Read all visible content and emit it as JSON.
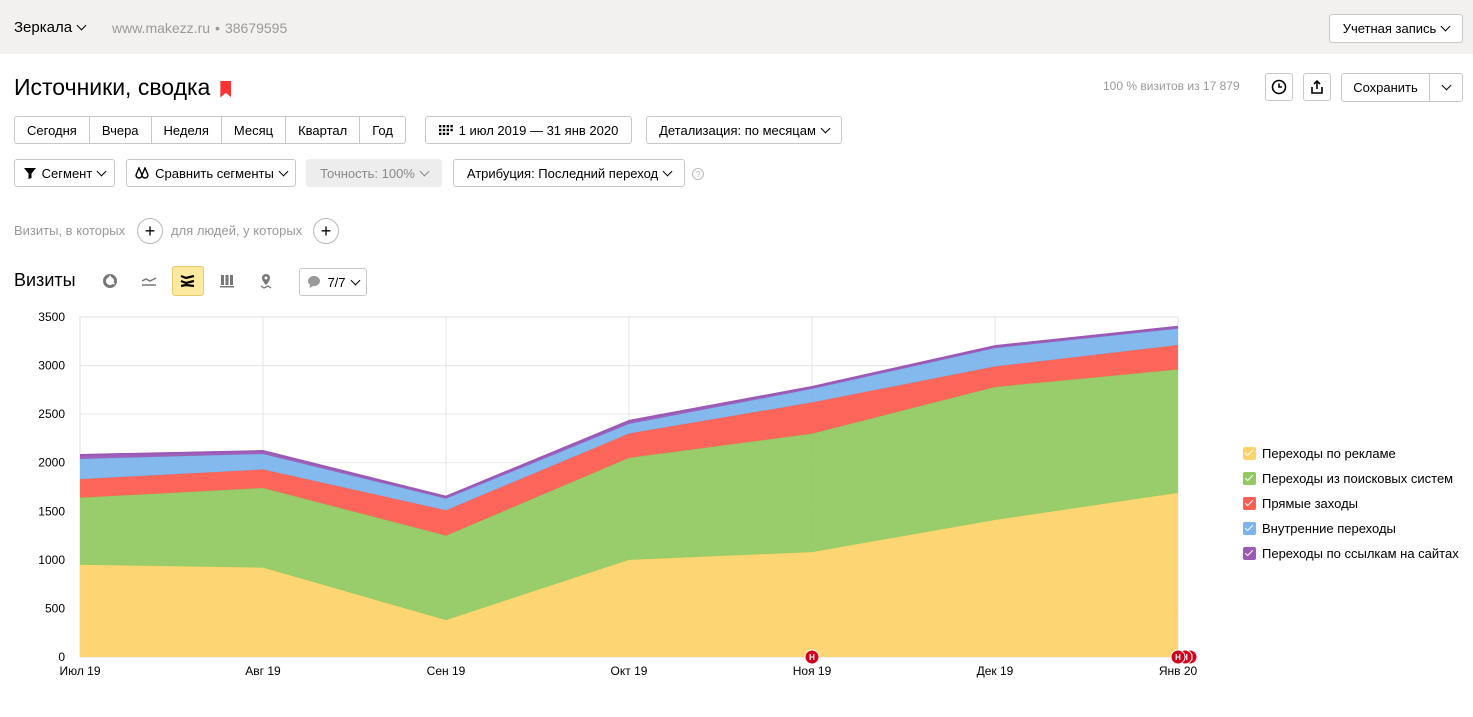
{
  "header": {
    "mirror_label": "Зеркала",
    "site": "www.makezz.ru",
    "counter_id": "38679595",
    "account_label": "Учетная запись"
  },
  "report": {
    "title": "Источники, сводка",
    "visits_info": "100 % визитов из 17 879",
    "save_label": "Сохранить"
  },
  "periods": [
    "Сегодня",
    "Вчера",
    "Неделя",
    "Месяц",
    "Квартал",
    "Год"
  ],
  "date_range": "1 июл 2019 — 31 янв 2020",
  "detail_label": "Детализация: по месяцам",
  "segment_label": "Сегмент",
  "compare_label": "Сравнить сегменты",
  "accuracy_label": "Точность: 100%",
  "attribution_label": "Атрибуция: Последний переход",
  "help_mark": "?",
  "filters": {
    "visits_label": "Визиты, в которых",
    "people_label": "для людей, у которых"
  },
  "chart_section": {
    "title": "Визиты",
    "notes_label": "7/7",
    "note_marker": "Н"
  },
  "chart_data": {
    "type": "area",
    "stacked": true,
    "categories": [
      "Июл 19",
      "Авг 19",
      "Сен 19",
      "Окт 19",
      "Ноя 19",
      "Дек 19",
      "Янв 20"
    ],
    "y_ticks": [
      "3500",
      "3000",
      "2500",
      "2000",
      "1500",
      "1000",
      "500",
      "0"
    ],
    "ylim": [
      0,
      3500
    ],
    "grid": true,
    "legend_position": "right",
    "series": [
      {
        "name": "Переходы по рекламе",
        "color": "#fdd46c",
        "values": [
          950,
          920,
          380,
          1000,
          1080,
          1410,
          1690
        ]
      },
      {
        "name": "Переходы из поисковых систем",
        "color": "#93c962",
        "values": [
          690,
          820,
          870,
          1050,
          1220,
          1370,
          1270
        ]
      },
      {
        "name": "Прямые заходы",
        "color": "#ff5e52",
        "values": [
          190,
          190,
          260,
          250,
          320,
          210,
          250
        ]
      },
      {
        "name": "Внутренние переходы",
        "color": "#7cb5ec",
        "values": [
          210,
          160,
          120,
          100,
          140,
          190,
          170
        ]
      },
      {
        "name": "Переходы по ссылкам на сайтах",
        "color": "#9b59b6",
        "values": [
          40,
          30,
          20,
          30,
          20,
          20,
          20
        ]
      }
    ]
  }
}
